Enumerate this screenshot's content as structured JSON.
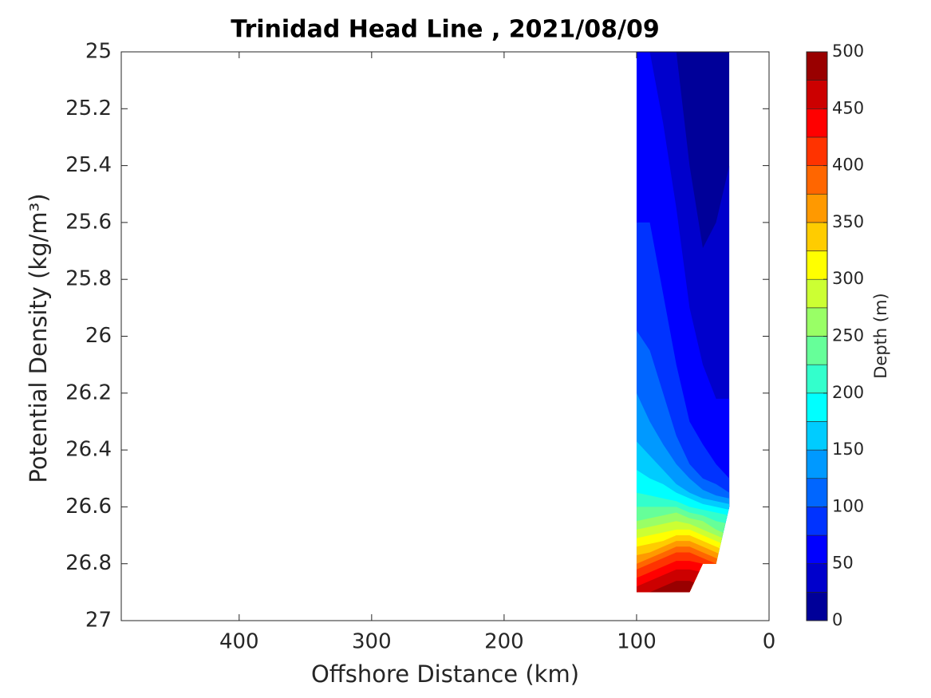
{
  "chart_data": {
    "type": "contourf",
    "title": "Trinidad Head Line , 2021/08/09",
    "xlabel": "Offshore Distance (km)",
    "ylabel": "Potential Density (kg/m³)",
    "xlim": [
      489,
      0
    ],
    "xticks": [
      400,
      300,
      200,
      100,
      0
    ],
    "ylim": [
      25,
      27
    ],
    "yticks": [
      25,
      25.2,
      25.4,
      25.6,
      25.8,
      26,
      26.2,
      26.4,
      26.6,
      26.8,
      27
    ],
    "x": [
      100,
      90,
      80,
      70,
      60,
      50,
      40,
      30
    ],
    "bottom": [
      26.9,
      26.9,
      26.9,
      26.9,
      26.9,
      26.8,
      26.8,
      26.6
    ],
    "contours": [
      {
        "level": 25,
        "y": [
          25.02,
          25.0,
          25.0,
          25.0,
          25.4,
          25.69,
          25.6,
          25.4
        ]
      },
      {
        "level": 50,
        "y": [
          25.0,
          25.0,
          25.25,
          25.55,
          25.9,
          26.1,
          26.22,
          26.22
        ]
      },
      {
        "level": 75,
        "y": [
          25.6,
          25.6,
          25.85,
          26.1,
          26.3,
          26.38,
          26.45,
          26.5
        ]
      },
      {
        "level": 100,
        "y": [
          25.98,
          26.05,
          26.2,
          26.35,
          26.45,
          26.5,
          26.52,
          26.55
        ]
      },
      {
        "level": 125,
        "y": [
          26.2,
          26.3,
          26.38,
          26.45,
          26.5,
          26.54,
          26.56,
          26.57
        ]
      },
      {
        "level": 150,
        "y": [
          26.37,
          26.42,
          26.47,
          26.52,
          26.55,
          26.57,
          26.58,
          26.59
        ]
      },
      {
        "level": 175,
        "y": [
          26.47,
          26.5,
          26.52,
          26.55,
          26.57,
          26.59,
          26.6,
          26.61
        ]
      },
      {
        "level": 200,
        "y": [
          26.55,
          26.56,
          26.57,
          26.58,
          26.6,
          26.61,
          26.62,
          26.63
        ]
      },
      {
        "level": 225,
        "y": [
          26.6,
          26.6,
          26.6,
          26.6,
          26.62,
          26.63,
          26.65,
          26.66
        ]
      },
      {
        "level": 250,
        "y": [
          26.65,
          26.64,
          26.63,
          26.62,
          26.64,
          26.65,
          26.68,
          26.7
        ]
      },
      {
        "level": 275,
        "y": [
          26.68,
          26.67,
          26.66,
          26.65,
          26.66,
          26.68,
          26.7,
          26.72
        ]
      },
      {
        "level": 300,
        "y": [
          26.71,
          26.7,
          26.69,
          26.68,
          26.68,
          26.7,
          26.72,
          26.74
        ]
      },
      {
        "level": 325,
        "y": [
          26.74,
          26.73,
          26.72,
          26.7,
          26.7,
          26.72,
          26.74,
          26.76
        ]
      },
      {
        "level": 350,
        "y": [
          26.77,
          26.76,
          26.74,
          26.72,
          26.72,
          26.74,
          26.76,
          26.78
        ]
      },
      {
        "level": 375,
        "y": [
          26.8,
          26.78,
          26.76,
          26.74,
          26.74,
          26.76,
          26.78,
          26.8
        ]
      },
      {
        "level": 400,
        "y": [
          26.82,
          26.8,
          26.78,
          26.76,
          26.76,
          26.78,
          26.8,
          26.82
        ]
      },
      {
        "level": 425,
        "y": [
          26.85,
          26.83,
          26.81,
          26.79,
          26.79,
          26.8,
          26.82,
          26.84
        ]
      },
      {
        "level": 450,
        "y": [
          26.88,
          26.86,
          26.84,
          26.82,
          26.82,
          26.83,
          26.85,
          26.87
        ]
      },
      {
        "level": 475,
        "y": [
          26.92,
          26.9,
          26.88,
          26.86,
          26.86,
          26.88,
          26.9,
          26.9
        ]
      }
    ],
    "levels": [
      0,
      25,
      50,
      75,
      100,
      125,
      150,
      175,
      200,
      225,
      250,
      275,
      300,
      325,
      350,
      375,
      400,
      425,
      450,
      475,
      500
    ],
    "colors": [
      "#000099",
      "#0000cc",
      "#0000ff",
      "#0033ff",
      "#0066ff",
      "#0099ff",
      "#00ccff",
      "#00ffff",
      "#33ffcc",
      "#66ff99",
      "#99ff66",
      "#ccff33",
      "#ffff00",
      "#ffcc00",
      "#ff9900",
      "#ff6600",
      "#ff3300",
      "#ff0000",
      "#cc0000",
      "#990000"
    ],
    "colorbar_label": "Depth (m)",
    "cticks": [
      0,
      50,
      100,
      150,
      200,
      250,
      300,
      350,
      400,
      450,
      500
    ]
  }
}
